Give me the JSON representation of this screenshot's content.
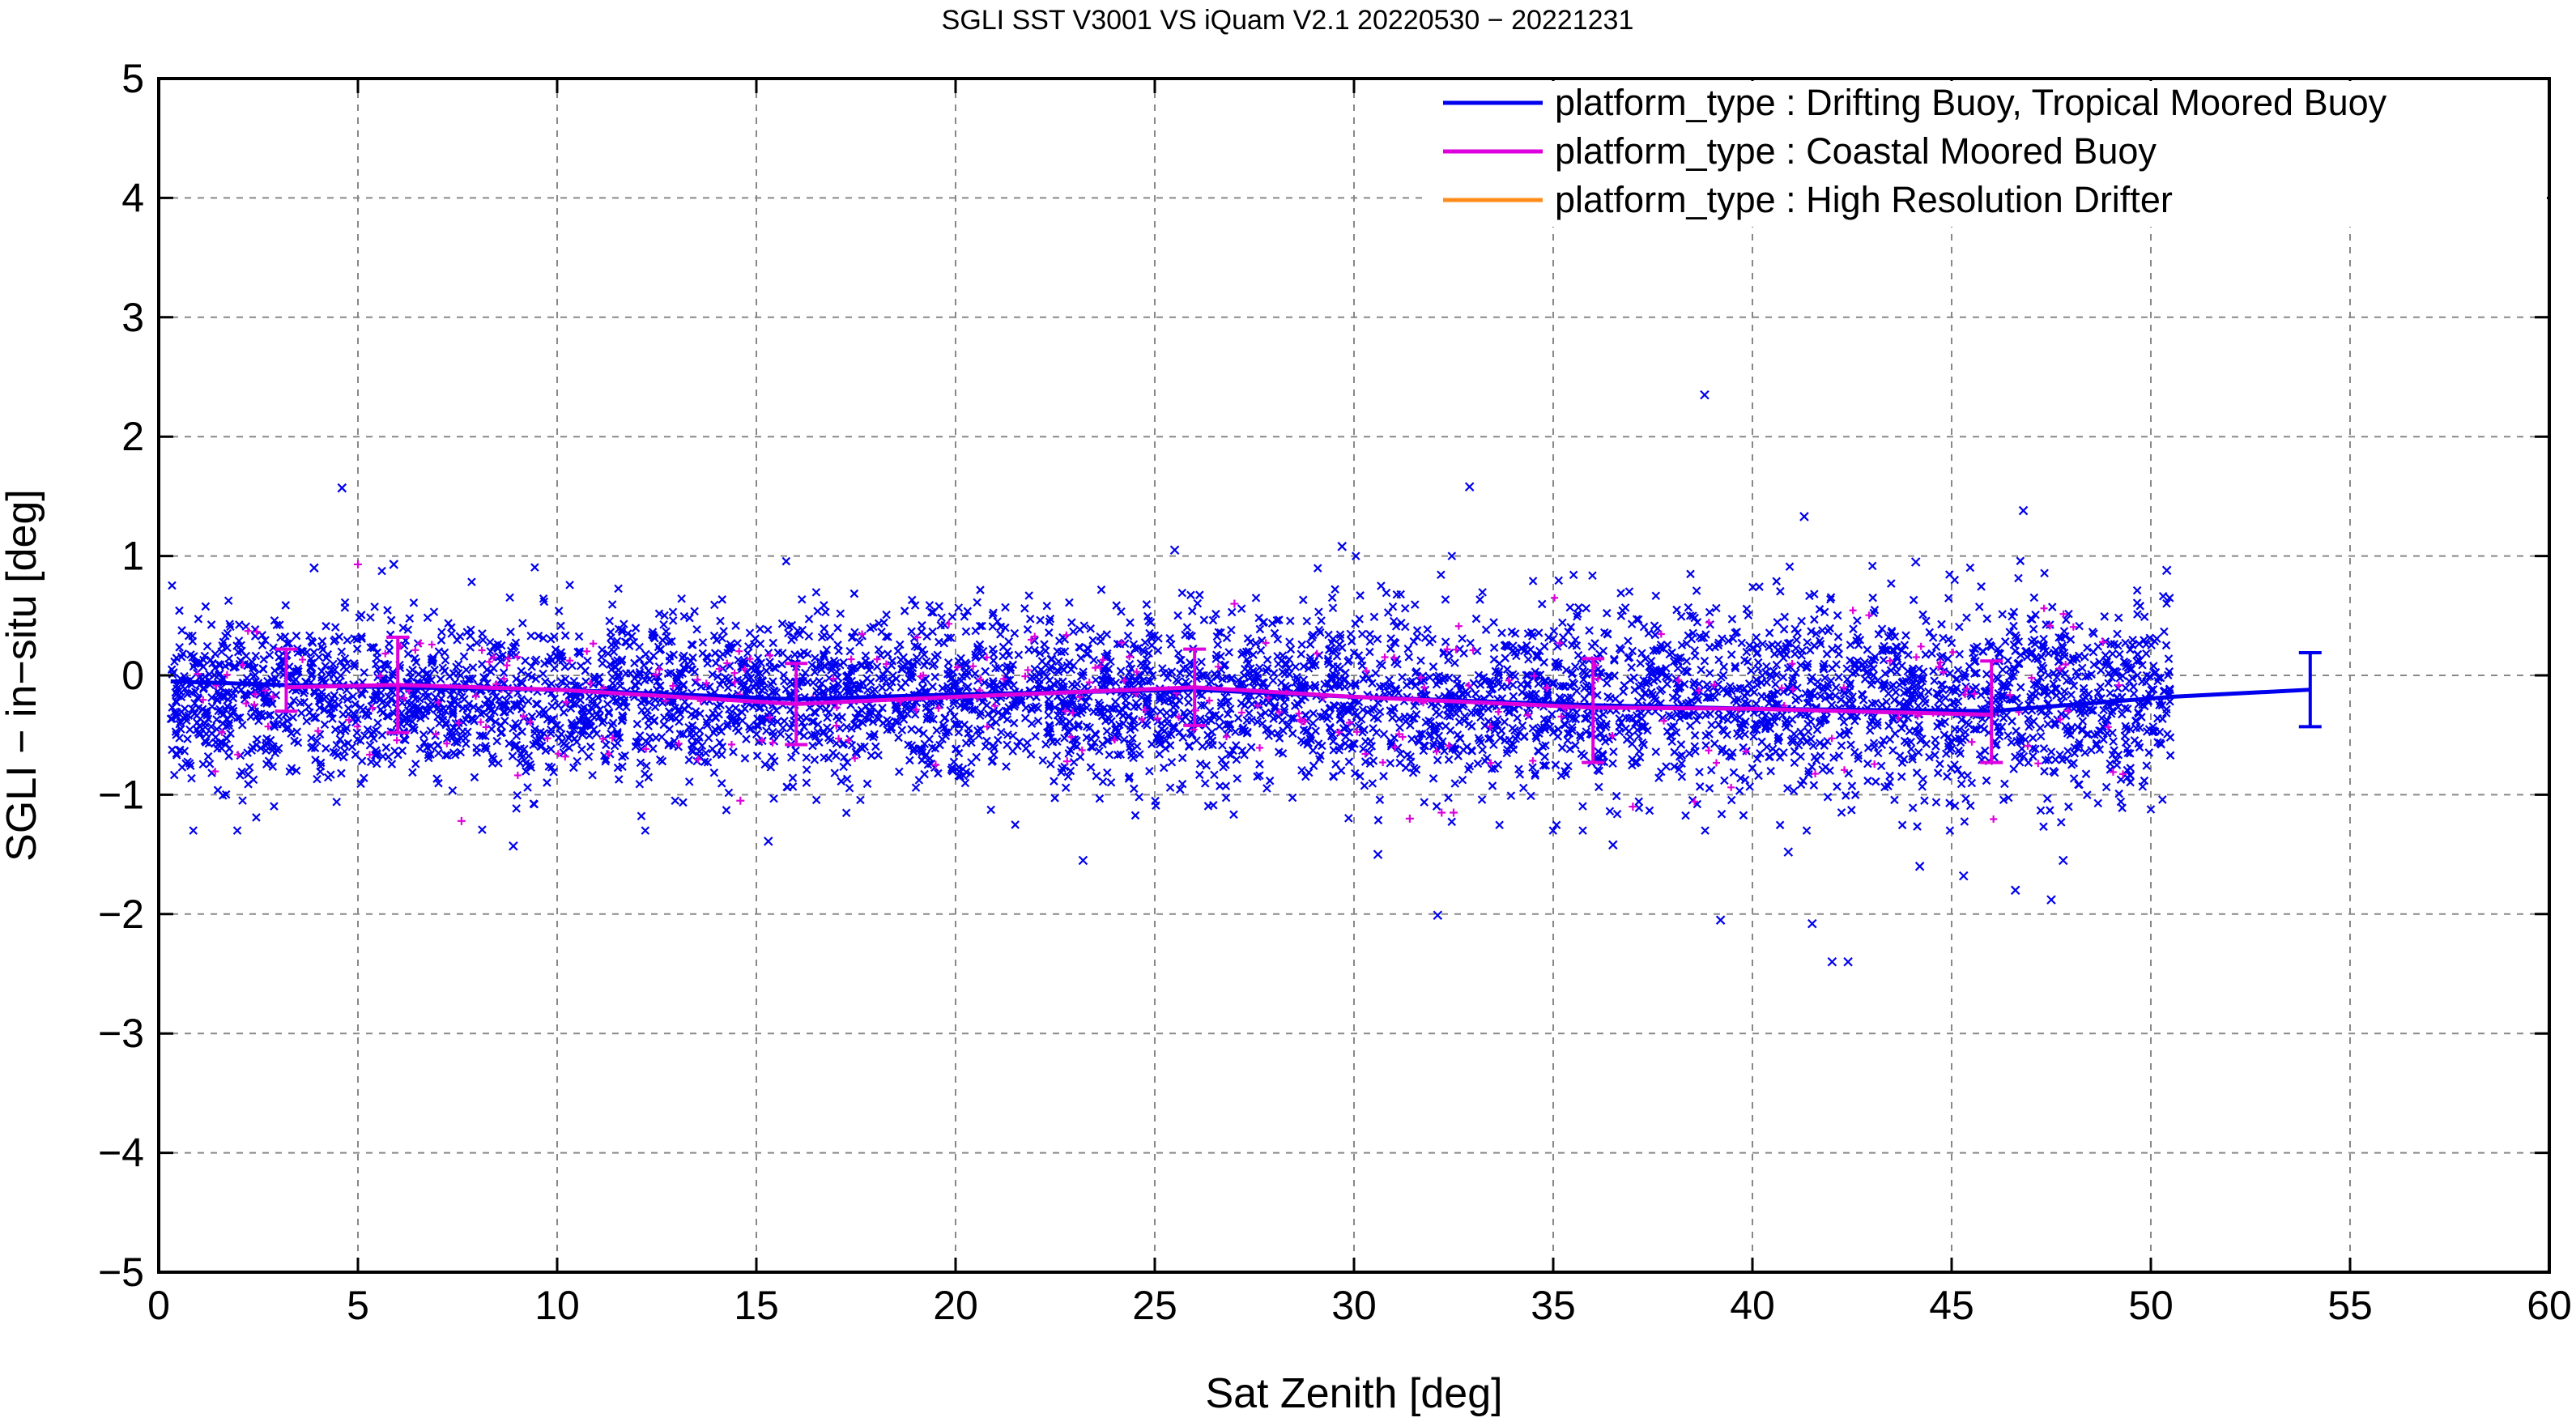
{
  "chart_data": {
    "type": "scatter",
    "title": "SGLI SST V3001 VS iQuam V2.1 20220530 − 20221231",
    "xlabel": "Sat Zenith [deg]",
    "ylabel": "SGLI − in−situ [deg]",
    "xlim": [
      0,
      60
    ],
    "ylim": [
      -5,
      5
    ],
    "xticks": [
      "0",
      "5",
      "10",
      "15",
      "20",
      "25",
      "30",
      "35",
      "40",
      "45",
      "50",
      "55",
      "60"
    ],
    "yticks": [
      "−5",
      "−4",
      "−3",
      "−2",
      "−1",
      "0",
      "1",
      "2",
      "3",
      "4",
      "5"
    ],
    "grid": true,
    "legend_position": "top-right",
    "series": [
      {
        "name": "platform_type : Drifting Buoy, Tropical Moored Buoy",
        "color": "#0000ee",
        "marker": "x",
        "cloud": {
          "x_range": [
            0.3,
            50.5
          ],
          "y_center": -0.2,
          "y_spread": 0.35
        },
        "mean_line": [
          {
            "x": 0.3,
            "y": -0.05
          },
          {
            "x": 3,
            "y": -0.08
          },
          {
            "x": 6,
            "y": -0.1
          },
          {
            "x": 10,
            "y": -0.12
          },
          {
            "x": 16,
            "y": -0.2
          },
          {
            "x": 20,
            "y": -0.16
          },
          {
            "x": 26,
            "y": -0.12
          },
          {
            "x": 30,
            "y": -0.18
          },
          {
            "x": 36,
            "y": -0.25
          },
          {
            "x": 40,
            "y": -0.28
          },
          {
            "x": 46,
            "y": -0.3
          },
          {
            "x": 50.5,
            "y": -0.18
          },
          {
            "x": 54,
            "y": -0.12
          }
        ],
        "error_bars": [
          {
            "x": 54,
            "y": -0.12,
            "low": -0.43,
            "high": 0.19
          }
        ],
        "outliers": [
          {
            "x": 4.6,
            "y": 1.57
          },
          {
            "x": 32.9,
            "y": 1.58
          },
          {
            "x": 38.8,
            "y": 2.35
          },
          {
            "x": 41.3,
            "y": 1.33
          },
          {
            "x": 46.8,
            "y": 1.38
          },
          {
            "x": 25.5,
            "y": 1.05
          },
          {
            "x": 29.7,
            "y": 1.08
          },
          {
            "x": 32.1,
            "y": -2.01
          },
          {
            "x": 39.2,
            "y": -2.05
          },
          {
            "x": 41.5,
            "y": -2.08
          },
          {
            "x": 42.0,
            "y": -2.4
          },
          {
            "x": 42.4,
            "y": -2.4
          },
          {
            "x": 23.2,
            "y": -1.55
          },
          {
            "x": 15.3,
            "y": -1.39
          },
          {
            "x": 8.9,
            "y": -1.43
          },
          {
            "x": 46.6,
            "y": -1.8
          },
          {
            "x": 47.5,
            "y": -1.88
          },
          {
            "x": 45.3,
            "y": -1.68
          },
          {
            "x": 47.8,
            "y": -1.55
          },
          {
            "x": 44.2,
            "y": -1.6
          },
          {
            "x": 3.9,
            "y": 0.9
          },
          {
            "x": 5.9,
            "y": 0.93
          },
          {
            "x": 50.4,
            "y": 0.88
          },
          {
            "x": 44.1,
            "y": 0.95
          },
          {
            "x": 40.9,
            "y": -1.48
          },
          {
            "x": 36.5,
            "y": -1.42
          },
          {
            "x": 30.6,
            "y": -1.5
          }
        ]
      },
      {
        "name": "platform_type : Coastal Moored Buoy",
        "color": "#dd00dd",
        "marker": "+",
        "cloud": {
          "x_range": [
            0.5,
            49.5
          ],
          "y_center": -0.2,
          "y_spread": 0.3
        },
        "mean_line": [
          {
            "x": 3.2,
            "y": -0.1
          },
          {
            "x": 6,
            "y": -0.08
          },
          {
            "x": 10,
            "y": -0.12
          },
          {
            "x": 16,
            "y": -0.24
          },
          {
            "x": 20,
            "y": -0.18
          },
          {
            "x": 26,
            "y": -0.1
          },
          {
            "x": 30,
            "y": -0.18
          },
          {
            "x": 36,
            "y": -0.27
          },
          {
            "x": 40,
            "y": -0.28
          },
          {
            "x": 46,
            "y": -0.33
          }
        ],
        "error_bars": [
          {
            "x": 3.2,
            "y": -0.1,
            "low": -0.3,
            "high": 0.22
          },
          {
            "x": 6,
            "y": -0.08,
            "low": -0.48,
            "high": 0.32
          },
          {
            "x": 16,
            "y": -0.24,
            "low": -0.58,
            "high": 0.1
          },
          {
            "x": 26,
            "y": -0.1,
            "low": -0.42,
            "high": 0.22
          },
          {
            "x": 36,
            "y": -0.27,
            "low": -0.73,
            "high": 0.14
          },
          {
            "x": 46,
            "y": -0.33,
            "low": -0.73,
            "high": 0.12
          }
        ],
        "outliers": [
          {
            "x": 7.6,
            "y": -1.22
          },
          {
            "x": 14.6,
            "y": -1.05
          },
          {
            "x": 31.4,
            "y": -1.2
          },
          {
            "x": 32.2,
            "y": -1.15
          },
          {
            "x": 32.5,
            "y": -1.15
          },
          {
            "x": 37.0,
            "y": -1.1
          },
          {
            "x": 19.5,
            "y": -0.75
          },
          {
            "x": 22.8,
            "y": -0.72
          },
          {
            "x": 10.2,
            "y": -0.68
          },
          {
            "x": 5,
            "y": 0.93
          },
          {
            "x": 48.8,
            "y": 0.28
          },
          {
            "x": 27.0,
            "y": 0.6
          }
        ]
      },
      {
        "name": "platform_type : High Resolution Drifter",
        "color": "#ff8c1a",
        "marker": "x",
        "mean_line": [],
        "error_bars": [],
        "outliers": []
      }
    ]
  }
}
